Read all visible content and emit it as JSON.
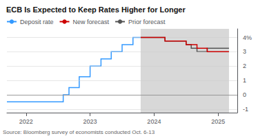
{
  "chart_data": {
    "type": "line",
    "title": "ECB Is Expected to Keep Rates Higher for Longer",
    "source": "Source: Bloomberg survey of economists conducted Oct. 6-13",
    "xlim": [
      2021.7,
      2025.3
    ],
    "xticks": [
      2022,
      2023,
      2024,
      2025
    ],
    "ylim": [
      -1.25,
      4.6
    ],
    "yticks": [
      -1,
      0,
      1,
      2,
      3,
      {
        "value": 4,
        "label": "4%"
      }
    ],
    "grid": true,
    "legend": "upper left",
    "shaded_region": {
      "x": [
        2023.79,
        2025.17
      ],
      "color": "#d8d8d8"
    },
    "reference_lines": [
      {
        "y": 0,
        "color": "#888888"
      }
    ],
    "series": [
      {
        "name": "Deposit rate",
        "color": "#3399ff",
        "x": [
          2021.7,
          2022.0,
          2022.0,
          2022.58,
          2022.58,
          2022.67,
          2022.67,
          2022.83,
          2022.83,
          2023.0,
          2023.0,
          2023.17,
          2023.17,
          2023.33,
          2023.33,
          2023.5,
          2023.5,
          2023.67,
          2023.67,
          2023.79
        ],
        "values": [
          -0.5,
          -0.5,
          -0.5,
          -0.5,
          0.0,
          0.0,
          0.5,
          0.5,
          1.25,
          1.25,
          2.0,
          2.0,
          2.5,
          2.5,
          3.0,
          3.0,
          3.5,
          3.5,
          4.0,
          4.0
        ]
      },
      {
        "name": "New forecast",
        "color": "#cc0000",
        "x": [
          2023.79,
          2024.17,
          2024.17,
          2024.5,
          2024.5,
          2024.67,
          2024.67,
          2024.83,
          2024.83,
          2025.0,
          2025.0,
          2025.17
        ],
        "values": [
          4.0,
          4.0,
          3.75,
          3.75,
          3.5,
          3.5,
          3.25,
          3.25,
          3.0,
          3.0,
          3.0,
          3.0
        ]
      },
      {
        "name": "Prior forecast",
        "color": "#555555",
        "x": [
          2023.79,
          2024.17,
          2024.17,
          2024.5,
          2024.5,
          2024.58,
          2024.58,
          2024.67,
          2024.67,
          2024.83,
          2024.83,
          2025.17
        ],
        "values": [
          4.0,
          4.0,
          3.75,
          3.75,
          3.5,
          3.5,
          3.25,
          3.25,
          3.0,
          3.0,
          3.25,
          3.25
        ]
      }
    ]
  }
}
